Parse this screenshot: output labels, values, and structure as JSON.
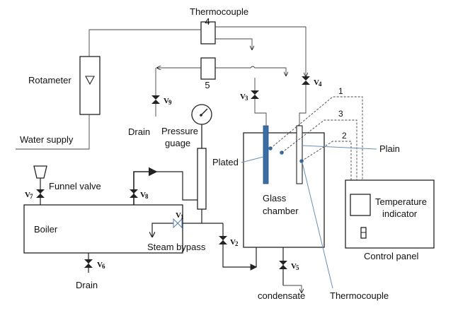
{
  "labels": {
    "thermocouple_top": "Thermocouple",
    "tc_num_4": "4",
    "tc_num_5": "5",
    "rotameter": "Rotameter",
    "water_supply": "Water supply",
    "drain_left": "Drain",
    "pressure_guage_1": "Pressure",
    "pressure_guage_2": "guage",
    "funnel_valve": "Funnel valve",
    "boiler": "Boiler",
    "drain_bottom": "Drain",
    "steam_bypass": "Steam bypass",
    "plated": "Plated",
    "glass_chamber_1": "Glass",
    "glass_chamber_2": "chamber",
    "plain": "Plain",
    "condensate": "condensate",
    "thermocouple_bottom": "Thermocouple",
    "temperature_indicator_1": "Temperature",
    "temperature_indicator_2": "indicator",
    "control_panel": "Control panel",
    "line_1": "1",
    "line_2": "2",
    "line_3": "3"
  },
  "valves": {
    "v1": {
      "main": "V",
      "sub": "1"
    },
    "v2": {
      "main": "V",
      "sub": "2"
    },
    "v3": {
      "main": "V",
      "sub": "3"
    },
    "v4": {
      "main": "V",
      "sub": "4"
    },
    "v5": {
      "main": "V",
      "sub": "5"
    },
    "v6": {
      "main": "V",
      "sub": "6"
    },
    "v7": {
      "main": "V",
      "sub": "7"
    },
    "v8": {
      "main": "V",
      "sub": "8"
    },
    "v9": {
      "main": "V",
      "sub": "9"
    }
  },
  "colors": {
    "plated_tube": "#3a6ea5",
    "leader_line": "#6a8db3",
    "sensor_dot": "#3a6ea5"
  }
}
